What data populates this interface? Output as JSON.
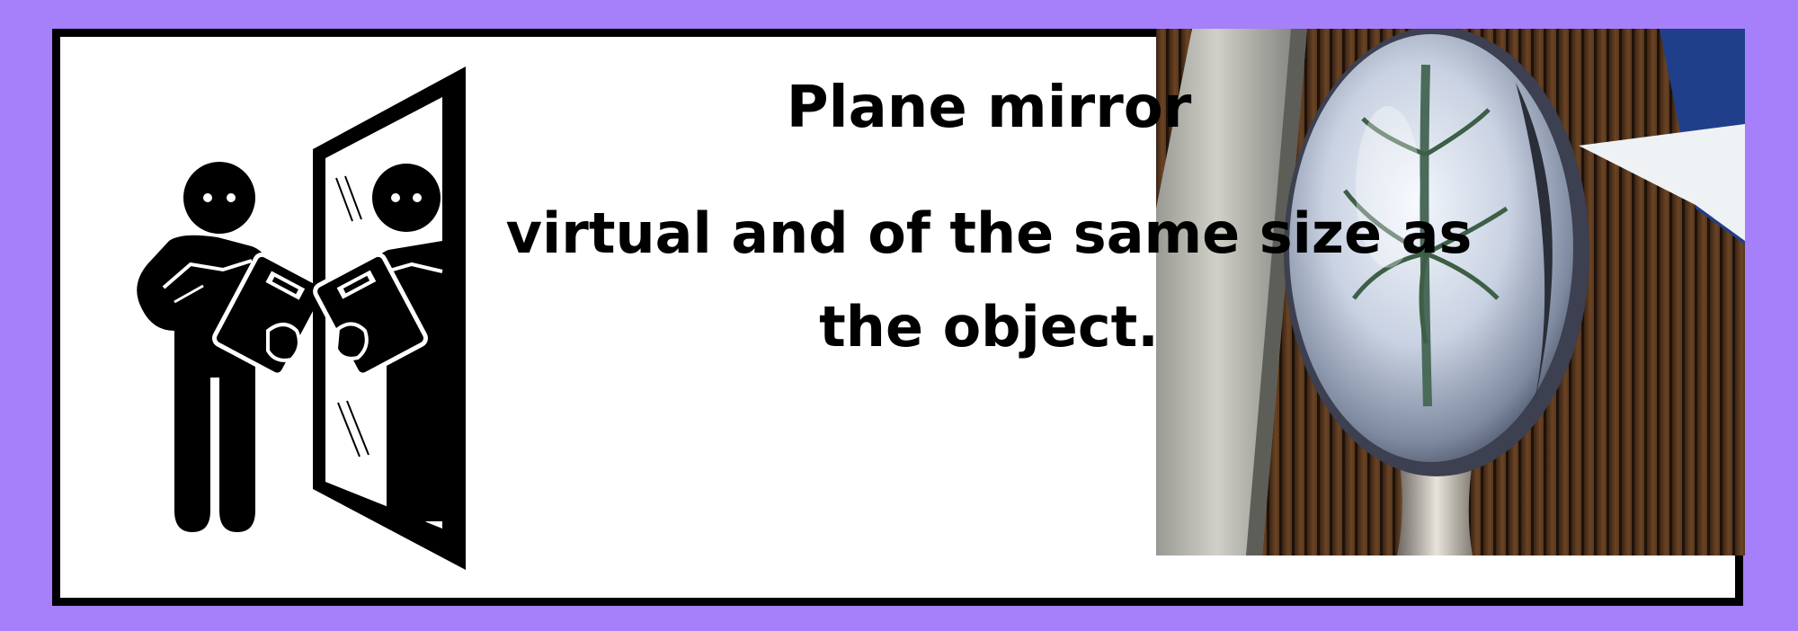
{
  "title": "Plane mirror",
  "description": "virtual and of the same size as the object.",
  "colors": {
    "background": "#a67ffb",
    "card": "#ffffff",
    "border": "#000000"
  },
  "icons": [
    "person-with-clipboard-icon",
    "plane-mirror-icon",
    "spoon-reflection-photo"
  ]
}
